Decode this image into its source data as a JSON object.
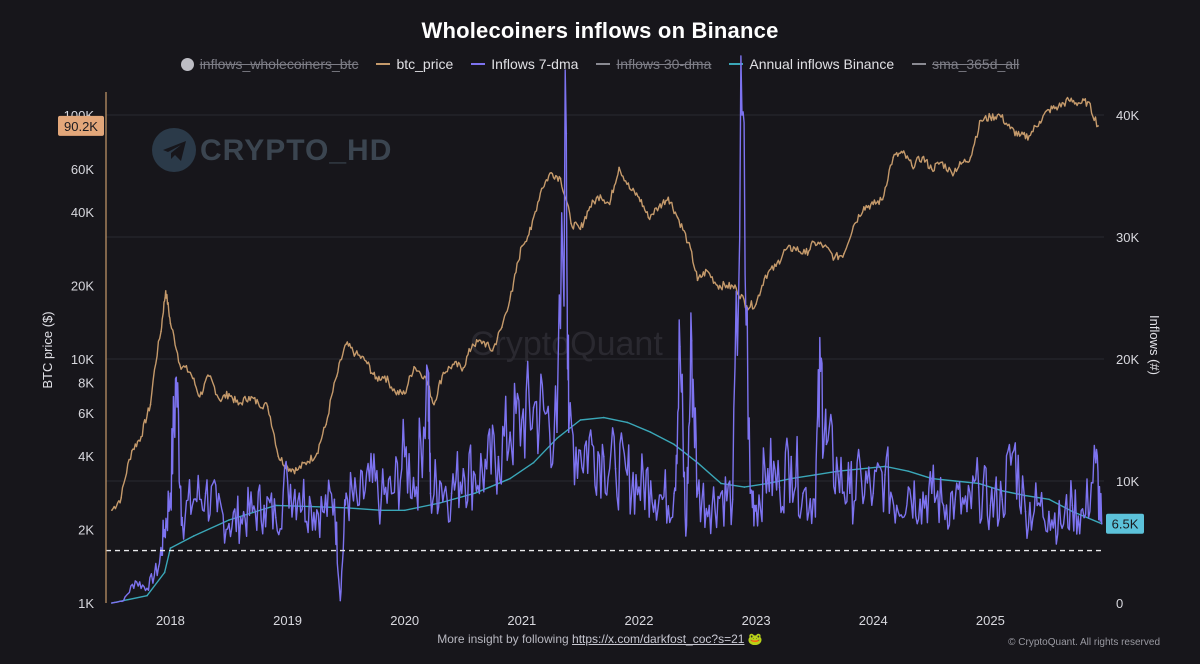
{
  "title": "Wholecoiners inflows on Binance",
  "legend": [
    {
      "label": "inflows_wholecoiners_btc",
      "color": "#bdbdc4",
      "marker": "dot",
      "hidden": true
    },
    {
      "label": "btc_price",
      "color": "#c59a6b",
      "marker": "line",
      "hidden": false
    },
    {
      "label": "Inflows 7-dma",
      "color": "#7d73f0",
      "marker": "line",
      "hidden": false
    },
    {
      "label": "Inflows 30-dma",
      "color": "#8a8a92",
      "marker": "line",
      "hidden": true
    },
    {
      "label": "Annual inflows Binance",
      "color": "#3aa7b8",
      "marker": "line",
      "hidden": false
    },
    {
      "label": "sma_365d_all",
      "color": "#8a8a92",
      "marker": "line",
      "hidden": true
    }
  ],
  "footer": {
    "prefix": "More insight by following",
    "link": "https://x.com/darkfost_coc?s=21",
    "emoji": "🐸"
  },
  "copyright": "© CryptoQuant. All rights reserved",
  "watermark": {
    "brand": "CRYPTO_HD",
    "source": "CryptoQuant"
  },
  "badges": {
    "price_current": "90.2K",
    "inflow_current": "6.5K"
  },
  "chart_data": {
    "type": "line",
    "x_tick_labels": [
      "2018",
      "2019",
      "2020",
      "2021",
      "2022",
      "2023",
      "2024",
      "2025"
    ],
    "y_left": {
      "label": "BTC price ($)",
      "scale": "log",
      "range": [
        1000,
        100000
      ],
      "tick_labels": [
        "1K",
        "2K",
        "4K",
        "6K",
        "8K",
        "10K",
        "20K",
        "40K",
        "60K",
        "100K"
      ],
      "tick_values": [
        1000,
        2000,
        4000,
        6000,
        8000,
        10000,
        20000,
        40000,
        60000,
        100000
      ]
    },
    "y_right": {
      "label": "Inflows (#)",
      "scale": "linear",
      "range": [
        0,
        40000
      ],
      "tick_labels": [
        "0",
        "10K",
        "20K",
        "30K",
        "40K"
      ],
      "tick_values": [
        0,
        10000,
        20000,
        30000,
        40000
      ]
    },
    "dashed_reference_inflow": 4300,
    "series": [
      {
        "name": "btc_price",
        "axis": "left",
        "color": "#c59a6b",
        "x": [
          2017.5,
          2017.58,
          2017.67,
          2017.75,
          2017.83,
          2017.92,
          2017.96,
          2018.0,
          2018.08,
          2018.17,
          2018.25,
          2018.33,
          2018.42,
          2018.5,
          2018.58,
          2018.67,
          2018.75,
          2018.83,
          2018.92,
          2019.0,
          2019.08,
          2019.17,
          2019.25,
          2019.33,
          2019.42,
          2019.5,
          2019.58,
          2019.67,
          2019.75,
          2019.83,
          2019.92,
          2020.0,
          2020.08,
          2020.17,
          2020.25,
          2020.33,
          2020.42,
          2020.5,
          2020.58,
          2020.67,
          2020.75,
          2020.83,
          2020.92,
          2021.0,
          2021.08,
          2021.17,
          2021.25,
          2021.33,
          2021.42,
          2021.5,
          2021.58,
          2021.67,
          2021.75,
          2021.83,
          2021.92,
          2022.0,
          2022.08,
          2022.17,
          2022.25,
          2022.33,
          2022.42,
          2022.5,
          2022.58,
          2022.67,
          2022.75,
          2022.83,
          2022.92,
          2023.0,
          2023.08,
          2023.17,
          2023.25,
          2023.33,
          2023.42,
          2023.5,
          2023.58,
          2023.67,
          2023.75,
          2023.83,
          2023.92,
          2024.0,
          2024.08,
          2024.17,
          2024.25,
          2024.33,
          2024.42,
          2024.5,
          2024.58,
          2024.67,
          2024.75,
          2024.83,
          2024.92,
          2025.0,
          2025.08,
          2025.17,
          2025.25,
          2025.33,
          2025.42,
          2025.5,
          2025.58,
          2025.67,
          2025.75,
          2025.83,
          2025.92
        ],
        "values": [
          2400,
          2700,
          4200,
          4800,
          6500,
          13000,
          19000,
          14000,
          9500,
          8800,
          7000,
          8500,
          6800,
          7200,
          6500,
          7000,
          6600,
          6400,
          4000,
          3600,
          3500,
          3800,
          4100,
          5400,
          8500,
          11500,
          10500,
          9800,
          8300,
          8500,
          7300,
          7200,
          9300,
          8500,
          6500,
          8800,
          9500,
          9200,
          11500,
          11800,
          10800,
          13500,
          19000,
          29000,
          34000,
          50000,
          58000,
          55000,
          36000,
          34000,
          42000,
          47000,
          43000,
          61000,
          50000,
          46000,
          38000,
          42000,
          46000,
          38000,
          30000,
          21000,
          23000,
          20000,
          20000,
          19500,
          16500,
          16800,
          22000,
          24000,
          28000,
          28500,
          27000,
          30000,
          29000,
          26000,
          27000,
          35000,
          42000,
          43000,
          45000,
          67000,
          70000,
          62000,
          67000,
          60000,
          64000,
          58000,
          63000,
          67000,
          95000,
          98000,
          100000,
          88000,
          82000,
          82000,
          94000,
          105000,
          108000,
          115000,
          112000,
          113000,
          90200
        ]
      },
      {
        "name": "Inflows 7-dma",
        "axis": "right",
        "color": "#7d73f0",
        "x": [
          2017.5,
          2017.6,
          2017.7,
          2017.8,
          2017.9,
          2017.95,
          2018.0,
          2018.05,
          2018.1,
          2018.2,
          2018.3,
          2018.4,
          2018.5,
          2018.6,
          2018.7,
          2018.8,
          2018.9,
          2019.0,
          2019.1,
          2019.2,
          2019.3,
          2019.4,
          2019.45,
          2019.5,
          2019.6,
          2019.7,
          2019.8,
          2019.9,
          2020.0,
          2020.1,
          2020.2,
          2020.22,
          2020.3,
          2020.4,
          2020.5,
          2020.6,
          2020.7,
          2020.8,
          2020.9,
          2021.0,
          2021.1,
          2021.2,
          2021.3,
          2021.38,
          2021.4,
          2021.5,
          2021.6,
          2021.7,
          2021.8,
          2021.9,
          2022.0,
          2022.1,
          2022.2,
          2022.3,
          2022.35,
          2022.4,
          2022.45,
          2022.5,
          2022.6,
          2022.7,
          2022.8,
          2022.88,
          2022.95,
          2023.0,
          2023.1,
          2023.2,
          2023.3,
          2023.4,
          2023.5,
          2023.55,
          2023.6,
          2023.7,
          2023.8,
          2023.9,
          2024.0,
          2024.1,
          2024.2,
          2024.3,
          2024.4,
          2024.5,
          2024.6,
          2024.7,
          2024.8,
          2024.9,
          2025.0,
          2025.1,
          2025.2,
          2025.3,
          2025.4,
          2025.5,
          2025.6,
          2025.7,
          2025.8,
          2025.9,
          2025.95
        ],
        "values": [
          0,
          200,
          1800,
          1200,
          3000,
          6000,
          9000,
          18500,
          7000,
          8500,
          9000,
          7500,
          6500,
          7000,
          7500,
          8000,
          7000,
          10000,
          9000,
          8000,
          7500,
          8500,
          200,
          9000,
          8000,
          10000,
          8500,
          9000,
          12000,
          9500,
          19000,
          9000,
          10000,
          9000,
          11000,
          10500,
          11000,
          12000,
          14000,
          15000,
          16000,
          15500,
          14000,
          38500,
          14000,
          12500,
          13000,
          12000,
          11000,
          10500,
          9500,
          10000,
          8500,
          9000,
          21000,
          5500,
          21500,
          9000,
          8000,
          9000,
          8500,
          40000,
          9000,
          8000,
          11000,
          9500,
          12000,
          9000,
          8500,
          19000,
          13000,
          10500,
          9000,
          10000,
          9000,
          10500,
          8000,
          9500,
          8500,
          9000,
          8000,
          8500,
          7500,
          9500,
          8000,
          8500,
          12500,
          7500,
          8000,
          7500,
          6500,
          8000,
          7000,
          11500,
          6500
        ]
      },
      {
        "name": "Annual inflows Binance",
        "axis": "right",
        "color": "#3aa7b8",
        "x": [
          2017.5,
          2017.8,
          2017.95,
          2018.0,
          2018.2,
          2018.5,
          2018.9,
          2019.2,
          2019.5,
          2019.8,
          2020.0,
          2020.3,
          2020.6,
          2020.9,
          2021.1,
          2021.3,
          2021.5,
          2021.7,
          2021.9,
          2022.1,
          2022.3,
          2022.5,
          2022.7,
          2022.9,
          2023.1,
          2023.3,
          2023.5,
          2023.7,
          2023.9,
          2024.1,
          2024.3,
          2024.5,
          2024.7,
          2024.9,
          2025.1,
          2025.3,
          2025.5,
          2025.7,
          2025.95
        ],
        "values": [
          0,
          600,
          2500,
          4500,
          5500,
          6800,
          8000,
          7900,
          7800,
          7600,
          7600,
          8200,
          9000,
          10200,
          11500,
          13500,
          15000,
          15200,
          14800,
          14000,
          13000,
          11500,
          9800,
          9500,
          9800,
          10200,
          10500,
          10800,
          11000,
          11200,
          10800,
          10200,
          10000,
          9800,
          9200,
          8800,
          8500,
          7500,
          6500
        ]
      }
    ]
  }
}
